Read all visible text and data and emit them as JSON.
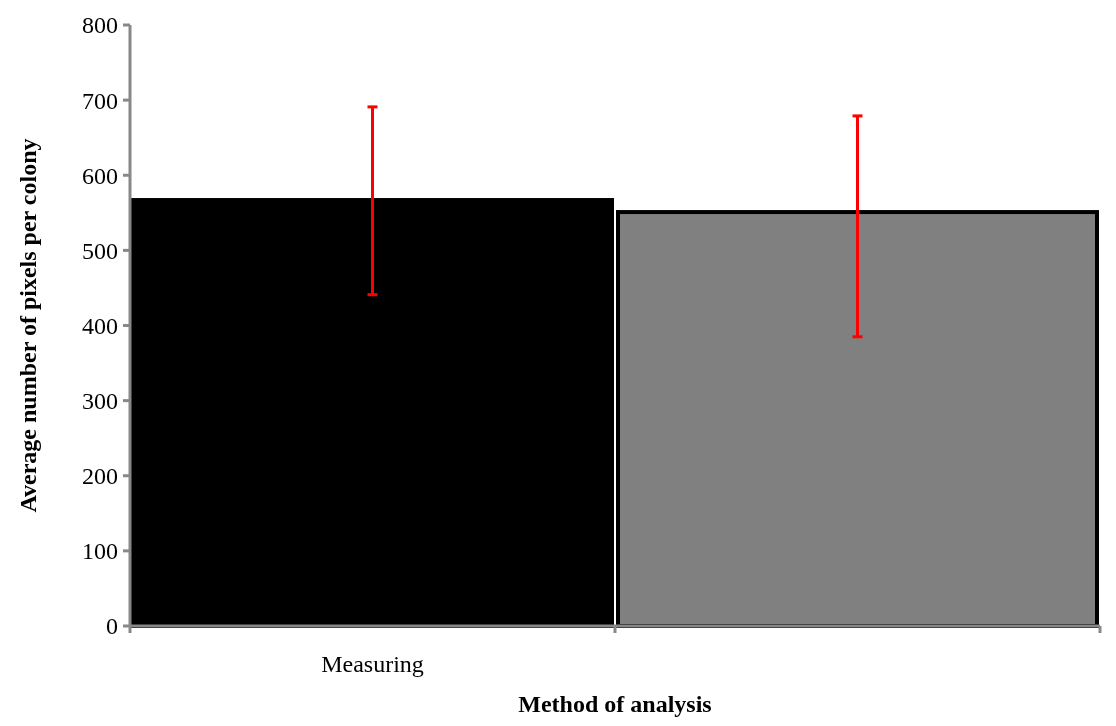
{
  "chart_data": {
    "type": "bar",
    "xlabel": "Method of analysis",
    "ylabel": "Average number of pixels per colony",
    "categories": [
      "Measuring",
      null
    ],
    "values": [
      567,
      551
    ],
    "colors": [
      "#000000",
      "#808080"
    ],
    "errors": [
      [
        441,
        691
      ],
      [
        385,
        679
      ]
    ],
    "ylim": [
      0,
      800
    ],
    "yticks": [
      0,
      100,
      200,
      300,
      400,
      500,
      600,
      700,
      800
    ],
    "grid": false
  }
}
